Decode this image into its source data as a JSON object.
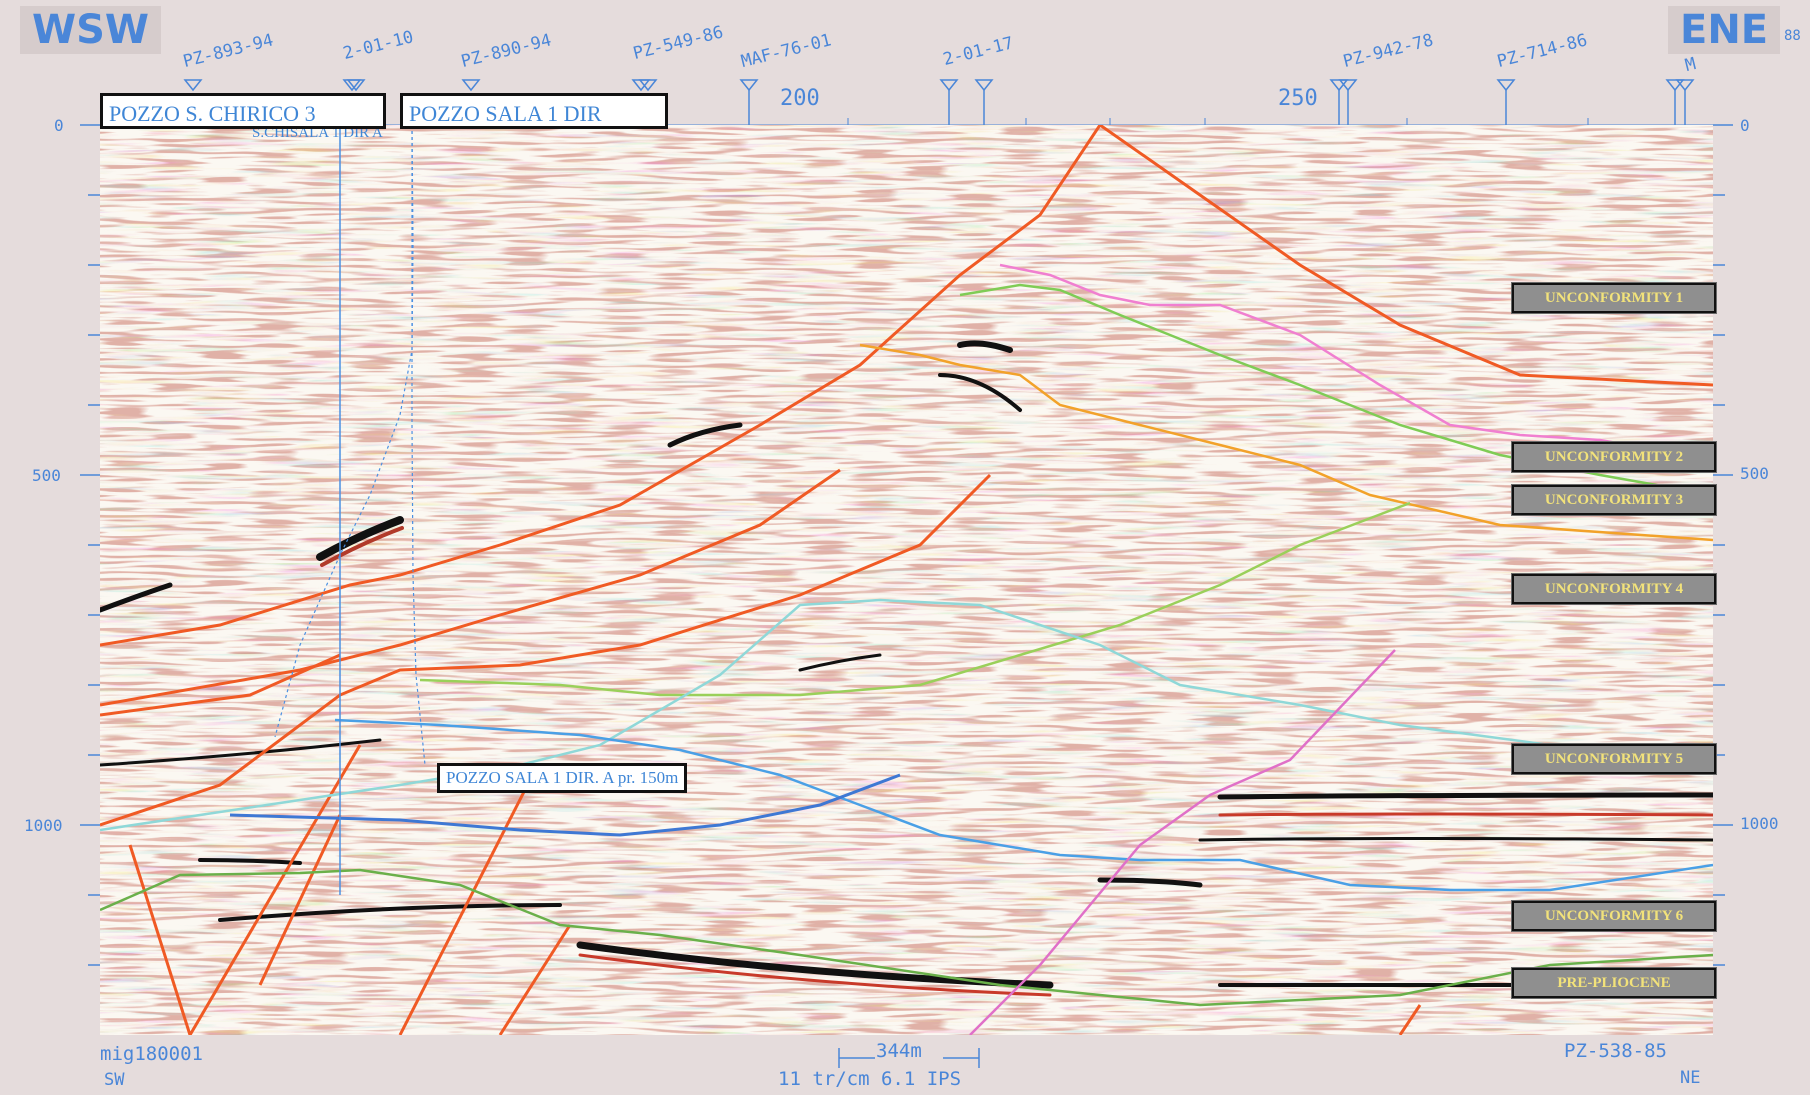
{
  "directions": {
    "left": "WSW",
    "right": "ENE"
  },
  "well_ticks": [
    {
      "label": "PZ-893-94"
    },
    {
      "label": "2-01-10"
    },
    {
      "label": "PZ-890-94"
    },
    {
      "label": "PZ-549-86"
    },
    {
      "label": "MAF-76-01"
    },
    {
      "label": "2-01-17"
    },
    {
      "label": "PZ-942-78"
    },
    {
      "label": "PZ-714-86"
    },
    {
      "label": "M"
    },
    {
      "label": "88"
    }
  ],
  "cdp_labels": {
    "c200": "200",
    "c250": "250"
  },
  "time_axis": {
    "t0": "0",
    "t500": "500",
    "t1000": "1000"
  },
  "wells": {
    "s_chirico": "POZZO S. CHIRICO 3",
    "sala1": "POZZO SALA 1 DIR",
    "sala1_sub": "S.CHISALA 1 DIR A",
    "sala1a": "POZZO SALA 1 DIR. A  pr. 150m"
  },
  "unconformities": [
    "UNCONFORMITY 1",
    "UNCONFORMITY 2",
    "UNCONFORMITY 3",
    "UNCONFORMITY 4",
    "UNCONFORMITY 5",
    "UNCONFORMITY 6",
    "PRE-PLIOCENE"
  ],
  "footer": {
    "line_id": "mig180001",
    "sw": "SW",
    "scale_bar": "344m",
    "params": "11 tr/cm 6.1 IPS",
    "end_line": "PZ-538-85",
    "ne": "NE"
  },
  "colors": {
    "fault": "#f05a24",
    "unc1": "#f07fd0",
    "unc2": "#7fcc55",
    "unc3": "#f2a22a",
    "unc4": "#9ad05a",
    "unc5": "#8fd8d8",
    "unc6": "#4aa0e6",
    "pre_pliocene": "#6ab04a",
    "magenta_fault": "#e070c8",
    "label_blue": "#4a86d8"
  }
}
